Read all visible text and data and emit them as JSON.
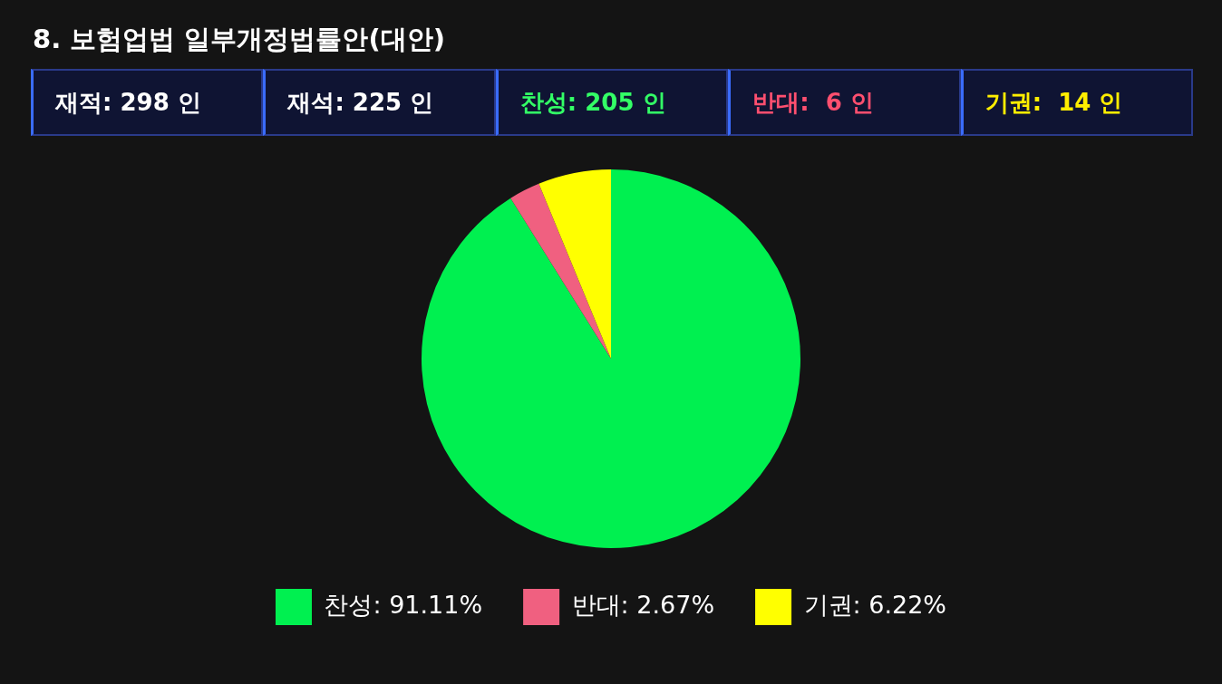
{
  "chart_data": {
    "type": "pie",
    "title": "8. 보험업법 일부개정법률안(대안)",
    "annotations": [
      "재적: 298 인",
      "재석: 225 인",
      "찬성: 205 인",
      "반대:  6 인",
      "기권:  14 인"
    ],
    "categories": [
      "찬성",
      "반대",
      "기권"
    ],
    "values": [
      91.11,
      2.67,
      6.22
    ],
    "value_labels": [
      "91.11%",
      "2.67%",
      "6.22%"
    ],
    "colors": [
      "#00f050",
      "#f06080",
      "#ffff00"
    ],
    "legend": "bottom"
  }
}
